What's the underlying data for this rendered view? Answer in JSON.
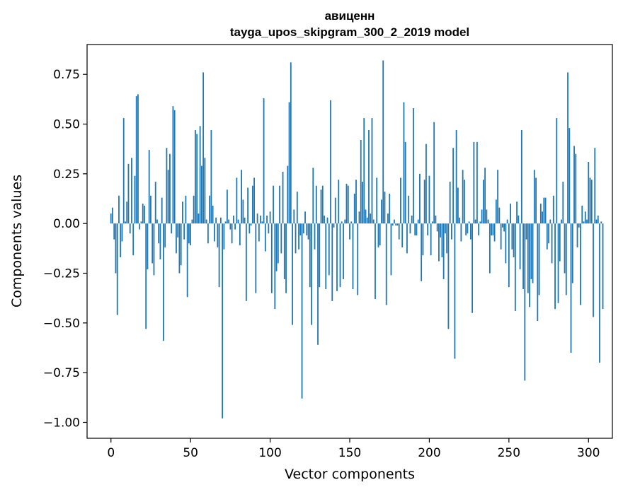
{
  "chart_data": {
    "type": "bar",
    "title": "авиценн",
    "subtitle": "tayga_upos_skipgram_300_2_2019 model",
    "xlabel": "Vector components",
    "ylabel": "Components values",
    "xlim": [
      -15,
      315
    ],
    "ylim": [
      -1.08,
      0.9
    ],
    "xticks": [
      0,
      50,
      100,
      150,
      200,
      250,
      300
    ],
    "xtick_labels": [
      "0",
      "50",
      "100",
      "150",
      "200",
      "250",
      "300"
    ],
    "yticks": [
      -1.0,
      -0.75,
      -0.5,
      -0.25,
      0.0,
      0.25,
      0.5,
      0.75
    ],
    "ytick_labels": [
      "−1.00",
      "−0.75",
      "−0.50",
      "−0.25",
      "0.00",
      "0.25",
      "0.50",
      "0.75"
    ],
    "grid": false,
    "bar_color": "#1f77b4",
    "x_start": 0,
    "values": [
      0.05,
      0.08,
      -0.08,
      -0.25,
      -0.46,
      0.14,
      -0.17,
      -0.09,
      0.53,
      0.01,
      0.11,
      0.3,
      -0.05,
      0.33,
      -0.16,
      0.24,
      0.64,
      0.65,
      -0.03,
      0.01,
      0.1,
      0.09,
      -0.53,
      -0.23,
      0.37,
      0.14,
      -0.2,
      -0.26,
      0.21,
      0.02,
      -0.1,
      -0.18,
      0.13,
      -0.59,
      -0.12,
      0.38,
      0.27,
      0.35,
      -0.05,
      0.59,
      0.57,
      -0.15,
      -0.07,
      -0.25,
      -0.21,
      0.11,
      -0.08,
      0.14,
      -0.37,
      -0.1,
      -0.11,
      0.02,
      0.14,
      0.47,
      0.45,
      0.05,
      0.49,
      0.29,
      0.76,
      0.33,
      0.02,
      -0.1,
      0.14,
      0.47,
      0.09,
      -0.09,
      0.03,
      -0.12,
      -0.32,
      0.03,
      -0.98,
      -0.13,
      0.01,
      0.17,
      0.02,
      -0.03,
      -0.1,
      0.04,
      -0.03,
      0.23,
      0.02,
      -0.11,
      0.27,
      0.12,
      0.03,
      -0.39,
      0.18,
      -0.05,
      -0.01,
      0.19,
      0.23,
      -0.35,
      0.05,
      -0.09,
      0.04,
      0.01,
      0.63,
      -0.14,
      0.04,
      -0.05,
      0.06,
      -0.35,
      0.19,
      -0.43,
      -0.24,
      -0.2,
      0.19,
      -0.15,
      0.26,
      -0.28,
      -0.35,
      0.29,
      0.61,
      0.81,
      -0.51,
      0.07,
      -0.15,
      0.16,
      -0.13,
      -0.06,
      -0.88,
      -0.05,
      0.06,
      -0.06,
      -0.08,
      -0.32,
      -0.51,
      0.28,
      -0.13,
      0.19,
      -0.61,
      -0.32,
      0.17,
      0.19,
      0.04,
      -0.33,
      0.03,
      -0.26,
      0.62,
      -0.39,
      -0.02,
      0.13,
      -0.34,
      0.22,
      -0.32,
      0.01,
      -0.28,
      0.02,
      0.2,
      0.19,
      -0.08,
      0.01,
      -0.33,
      0.15,
      0.22,
      -0.36,
      0.06,
      0.42,
      0.21,
      0.53,
      0.07,
      0.03,
      0.47,
      0.05,
      0.53,
      0.02,
      -0.38,
      0.23,
      -0.12,
      -0.11,
      0.12,
      0.82,
      0.16,
      -0.41,
      0.05,
      0.15,
      -0.26,
      -0.01,
      0.02,
      -0.01,
      -0.01,
      -0.08,
      0.23,
      -0.12,
      0.61,
      0.41,
      -0.15,
      0.14,
      -0.05,
      0.04,
      0.58,
      -0.06,
      -0.06,
      0.02,
      0.25,
      -0.29,
      -0.16,
      0.22,
      0.4,
      -0.06,
      0.24,
      -0.16,
      0.01,
      0.51,
      0.04,
      -0.04,
      -0.19,
      -0.07,
      -0.17,
      -0.28,
      -0.05,
      -0.15,
      -0.53,
      0.21,
      -0.08,
      0.38,
      -0.68,
      0.47,
      0.18,
      0.03,
      -0.09,
      0.27,
      0.22,
      -0.06,
      -0.05,
      0.01,
      -0.08,
      -0.45,
      0.41,
      0.02,
      0.41,
      -0.06,
      0.01,
      0.07,
      0.22,
      0.28,
      0.07,
      0.02,
      -0.25,
      -0.06,
      -0.06,
      -0.09,
      0.12,
      0.27,
      0.08,
      -0.13,
      -0.02,
      -0.04,
      -0.2,
      0.02,
      -0.32,
      0.1,
      -0.13,
      -0.17,
      -0.44,
      0.11,
      0.04,
      -0.23,
      0.47,
      -0.33,
      -0.79,
      -0.08,
      -0.35,
      -0.42,
      -0.28,
      -0.3,
      0.27,
      0.23,
      -0.49,
      -0.36,
      0.1,
      0.06,
      0.13,
      0.13,
      -0.13,
      -0.1,
      0.02,
      -0.2,
      0.14,
      -0.43,
      0.53,
      -0.4,
      -0.19,
      0.02,
      0.21,
      -0.25,
      -0.36,
      0.76,
      0.48,
      -0.65,
      -0.3,
      0.39,
      0.35,
      -0.12,
      -0.02,
      -0.41,
      0.09,
      0.01,
      0.06,
      0.02,
      0.31,
      0.23,
      0.22,
      -0.47,
      0.38,
      0.02,
      0.04,
      -0.7,
      0.01,
      -0.43
    ]
  }
}
